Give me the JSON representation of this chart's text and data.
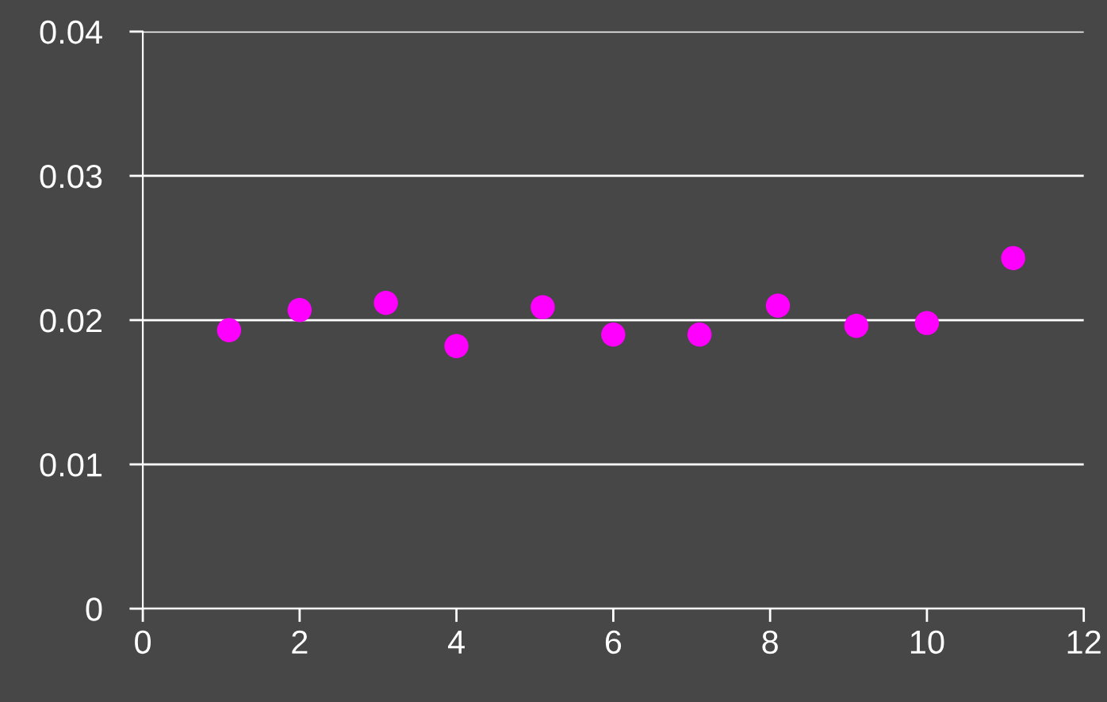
{
  "chart_data": {
    "type": "scatter",
    "x": [
      1.1,
      2.0,
      3.1,
      4.0,
      5.1,
      6.0,
      7.1,
      8.1,
      9.1,
      10.0,
      11.1
    ],
    "series": [
      {
        "color": "#ff00ff",
        "values": [
          0.0193,
          0.0207,
          0.0212,
          0.0182,
          0.0209,
          0.019,
          0.019,
          0.021,
          0.0196,
          0.0198,
          0.0243
        ]
      }
    ],
    "xlim": [
      0,
      12
    ],
    "xticks": [
      0,
      2,
      4,
      6,
      8,
      10,
      12
    ],
    "ylim": [
      0,
      0.04
    ],
    "yticks": [
      {
        "value": 0,
        "label": "0"
      },
      0.01,
      0.02,
      0.03,
      0.04
    ],
    "grid": "y",
    "marker": "circle"
  }
}
